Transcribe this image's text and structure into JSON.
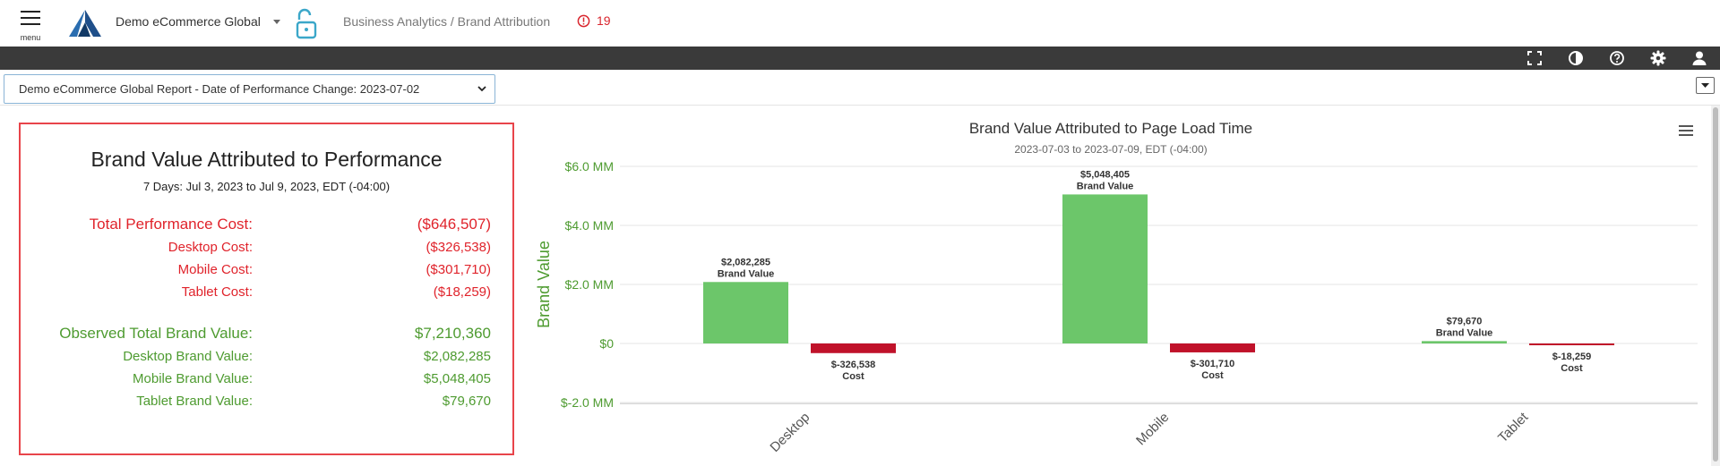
{
  "header": {
    "menu_label": "menu",
    "site_name": "Demo eCommerce Global",
    "breadcrumb": "Business Analytics / Brand Attribution",
    "alert_count": "19"
  },
  "toolbar": {
    "icons": [
      "fullscreen-icon",
      "contrast-icon",
      "help-icon",
      "gear-icon",
      "user-icon"
    ]
  },
  "report_select": {
    "value": "Demo eCommerce Global Report - Date of Performance Change: 2023-07-02"
  },
  "summary": {
    "title": "Brand Value Attributed to Performance",
    "subtitle": "7 Days: Jul 3, 2023 to Jul 9, 2023, EDT (-04:00)",
    "cost_rows": [
      {
        "label": "Total Performance Cost:",
        "value": "($646,507)"
      },
      {
        "label": "Desktop Cost:",
        "value": "($326,538)"
      },
      {
        "label": "Mobile Cost:",
        "value": "($301,710)"
      },
      {
        "label": "Tablet Cost:",
        "value": "($18,259)"
      }
    ],
    "value_rows": [
      {
        "label": "Observed Total Brand Value:",
        "value": "$7,210,360"
      },
      {
        "label": "Desktop Brand Value:",
        "value": "$2,082,285"
      },
      {
        "label": "Mobile Brand Value:",
        "value": "$5,048,405"
      },
      {
        "label": "Tablet Brand Value:",
        "value": "$79,670"
      }
    ]
  },
  "colors": {
    "brand_value": "#6cc66a",
    "cost": "#c0122a",
    "axis_text": "#4e9b30",
    "border_red": "#e8444a"
  },
  "chart_data": {
    "type": "bar",
    "title": "Brand Value Attributed to Page Load Time",
    "subtitle": "2023-07-03 to 2023-07-09, EDT (-04:00)",
    "ylabel": "Brand Value",
    "xlabel": "",
    "categories": [
      "Desktop",
      "Mobile",
      "Tablet"
    ],
    "series": [
      {
        "name": "Brand Value",
        "values": [
          2082285,
          5048405,
          79670
        ],
        "labels": [
          "$2,082,285",
          "$5,048,405",
          "$79,670"
        ]
      },
      {
        "name": "Cost",
        "values": [
          -326538,
          -301710,
          -18259
        ],
        "labels": [
          "$-326,538",
          "$-301,710",
          "$-18,259"
        ]
      }
    ],
    "yticks": [
      6000000,
      4000000,
      2000000,
      0,
      -2000000
    ],
    "ytick_labels": [
      "$6.0 MM",
      "$4.0 MM",
      "$2.0 MM",
      "$0",
      "$-2.0 MM"
    ],
    "ylim": [
      -2400000,
      6000000
    ],
    "grid": true,
    "legend": false
  }
}
